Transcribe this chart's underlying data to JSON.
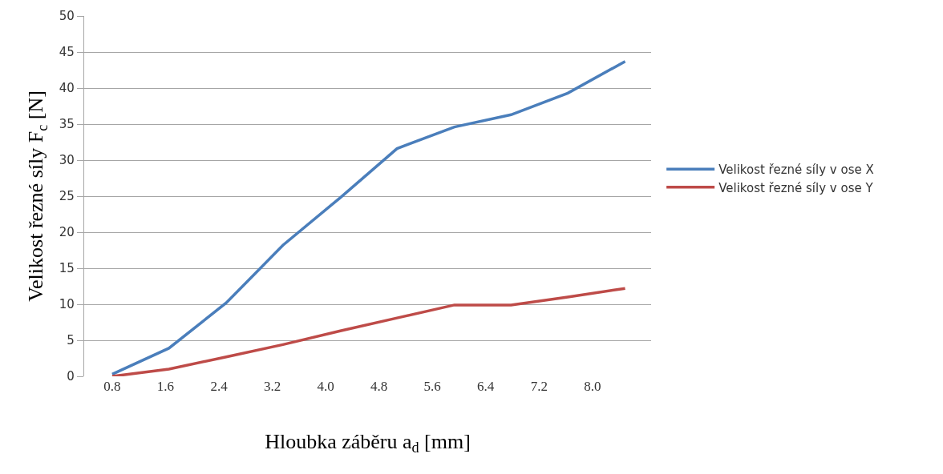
{
  "chart_data": {
    "type": "line",
    "xlabel": "Hloubka záběru a$_{d}$ [mm]",
    "ylabel": "Velikost řezné síly F$_{c}$ [N]",
    "x": [
      0.8,
      1.65,
      2.51,
      3.36,
      4.22,
      5.07,
      5.93,
      6.78,
      7.63,
      8.49
    ],
    "series": [
      {
        "name": "Velikost řezné síly v ose X",
        "color": "#4a7ebb",
        "values": [
          0.3,
          3.9,
          10.2,
          18.2,
          24.8,
          31.6,
          34.6,
          36.3,
          39.3,
          43.7
        ]
      },
      {
        "name": "Velikost řezné síly v ose Y",
        "color": "#be4b48",
        "values": [
          0,
          1.0,
          2.7,
          4.4,
          6.3,
          8.1,
          9.9,
          9.9,
          11.0,
          12.2
        ]
      }
    ],
    "xlim": [
      0.38,
      8.88
    ],
    "xticks": [
      {
        "value": 0.8,
        "label": "0.8"
      },
      1.6,
      2.4,
      3.2,
      {
        "value": 4.0,
        "label": "4.0"
      },
      4.8,
      5.6,
      6.4,
      7.2,
      {
        "value": 8.0,
        "label": "8.0"
      }
    ],
    "ylim": [
      0,
      50
    ],
    "yticks": [
      0,
      5,
      10,
      15,
      20,
      25,
      30,
      35,
      40,
      45,
      50
    ],
    "grid": "y",
    "legend": "right",
    "marker": "none",
    "line_style": "solid"
  }
}
